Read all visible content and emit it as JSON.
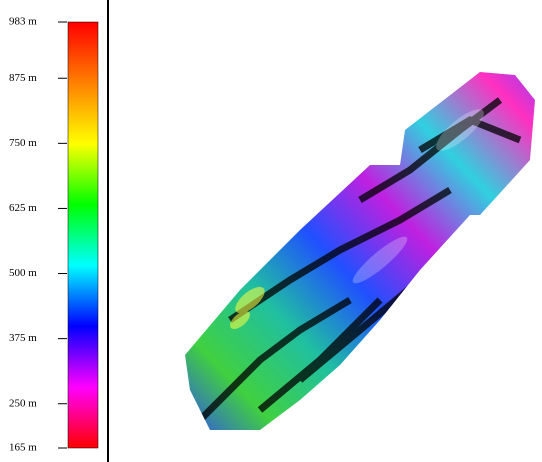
{
  "legend": {
    "range": [
      165,
      983
    ],
    "ticks": [
      {
        "value": 983,
        "label": "983 m"
      },
      {
        "value": 875,
        "label": "875 m"
      },
      {
        "value": 750,
        "label": "750 m"
      },
      {
        "value": 625,
        "label": "625 m"
      },
      {
        "value": 500,
        "label": "500 m"
      },
      {
        "value": 375,
        "label": "375 m"
      },
      {
        "value": 250,
        "label": "250 m"
      },
      {
        "value": 165,
        "label": "165 m"
      }
    ],
    "colors": [
      "#ff0000",
      "#ff8000",
      "#ffff00",
      "#00ff00",
      "#00ffff",
      "#0000ff",
      "#ff00ff",
      "#ff0000"
    ]
  }
}
